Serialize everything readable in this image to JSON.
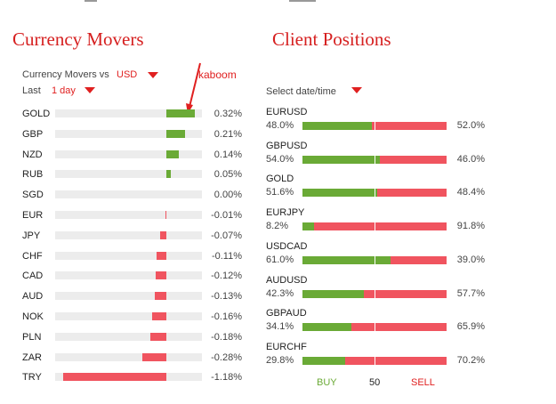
{
  "colors": {
    "title": "#d62020",
    "accent_red": "#e02020",
    "bar_green": "#6aaa36",
    "bar_red": "#f0545f",
    "track": "#ececec"
  },
  "currency_movers": {
    "title": "Currency Movers",
    "vs_label": "Currency Movers vs",
    "vs_value": "USD",
    "period_label": "Last",
    "period_value": "1 day",
    "annotation": "kaboom",
    "rows": [
      {
        "label": "GOLD",
        "change": 0.32,
        "text": "0.32%"
      },
      {
        "label": "GBP",
        "change": 0.21,
        "text": "0.21%"
      },
      {
        "label": "NZD",
        "change": 0.14,
        "text": "0.14%"
      },
      {
        "label": "RUB",
        "change": 0.05,
        "text": "0.05%"
      },
      {
        "label": "SGD",
        "change": 0.0,
        "text": "0.00%"
      },
      {
        "label": "EUR",
        "change": -0.01,
        "text": "-0.01%"
      },
      {
        "label": "JPY",
        "change": -0.07,
        "text": "-0.07%"
      },
      {
        "label": "CHF",
        "change": -0.11,
        "text": "-0.11%"
      },
      {
        "label": "CAD",
        "change": -0.12,
        "text": "-0.12%"
      },
      {
        "label": "AUD",
        "change": -0.13,
        "text": "-0.13%"
      },
      {
        "label": "NOK",
        "change": -0.16,
        "text": "-0.16%"
      },
      {
        "label": "PLN",
        "change": -0.18,
        "text": "-0.18%"
      },
      {
        "label": "ZAR",
        "change": -0.28,
        "text": "-0.28%"
      },
      {
        "label": "TRY",
        "change": -1.18,
        "text": "-1.18%"
      }
    ]
  },
  "client_positions": {
    "title": "Client Positions",
    "date_label": "Select date/time",
    "rows": [
      {
        "symbol": "EURUSD",
        "buy": 48.0,
        "buy_text": "48.0%",
        "sell_text": "52.0%"
      },
      {
        "symbol": "GBPUSD",
        "buy": 54.0,
        "buy_text": "54.0%",
        "sell_text": "46.0%"
      },
      {
        "symbol": "GOLD",
        "buy": 51.6,
        "buy_text": "51.6%",
        "sell_text": "48.4%"
      },
      {
        "symbol": "EURJPY",
        "buy": 8.2,
        "buy_text": "8.2%",
        "sell_text": "91.8%"
      },
      {
        "symbol": "USDCAD",
        "buy": 61.0,
        "buy_text": "61.0%",
        "sell_text": "39.0%"
      },
      {
        "symbol": "AUDUSD",
        "buy": 42.3,
        "buy_text": "42.3%",
        "sell_text": "57.7%"
      },
      {
        "symbol": "GBPAUD",
        "buy": 34.1,
        "buy_text": "34.1%",
        "sell_text": "65.9%"
      },
      {
        "symbol": "EURCHF",
        "buy": 29.8,
        "buy_text": "29.8%",
        "sell_text": "70.2%"
      }
    ],
    "footer": {
      "buy": "BUY",
      "mid": "50",
      "sell": "SELL"
    }
  }
}
